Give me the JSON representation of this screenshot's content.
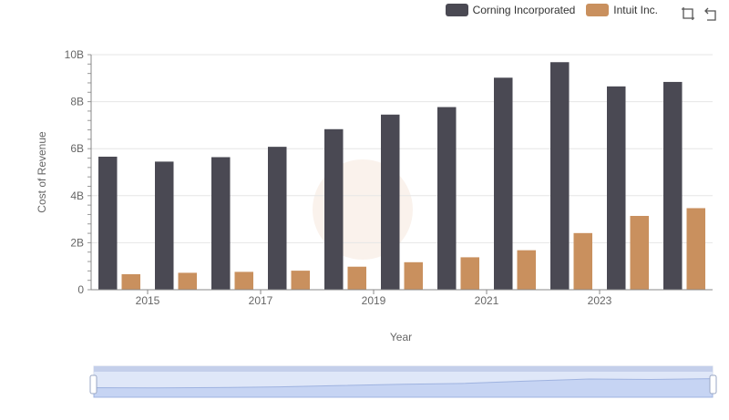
{
  "legend": {
    "items": [
      {
        "name": "Corning Incorporated",
        "color": "#4a4953"
      },
      {
        "name": "Intuit Inc.",
        "color": "#c9905e"
      }
    ]
  },
  "toolbar": {
    "zoom_icon": "zoom-select-icon",
    "restore_icon": "restore-icon"
  },
  "chart_data": {
    "type": "bar",
    "title": "",
    "xlabel": "Year",
    "ylabel": "Cost of Revenue",
    "ylim": [
      0,
      10000000000
    ],
    "yticks": [
      "0",
      "2B",
      "4B",
      "6B",
      "8B",
      "10B"
    ],
    "xtick_labels": [
      "2015",
      "2017",
      "2019",
      "2021",
      "2023"
    ],
    "categories": [
      "2014",
      "2015",
      "2016",
      "2017",
      "2018",
      "2019",
      "2020",
      "2021",
      "2022",
      "2023",
      "2024"
    ],
    "series": [
      {
        "name": "Corning Incorporated",
        "color": "#4a4953",
        "values": [
          5660000000,
          5450000000,
          5640000000,
          6080000000,
          6830000000,
          7450000000,
          7770000000,
          9020000000,
          9680000000,
          8650000000,
          8840000000
        ]
      },
      {
        "name": "Intuit Inc.",
        "color": "#c9905e",
        "values": [
          660000000,
          720000000,
          760000000,
          810000000,
          980000000,
          1170000000,
          1380000000,
          1680000000,
          2410000000,
          3140000000,
          3470000000
        ]
      }
    ]
  }
}
